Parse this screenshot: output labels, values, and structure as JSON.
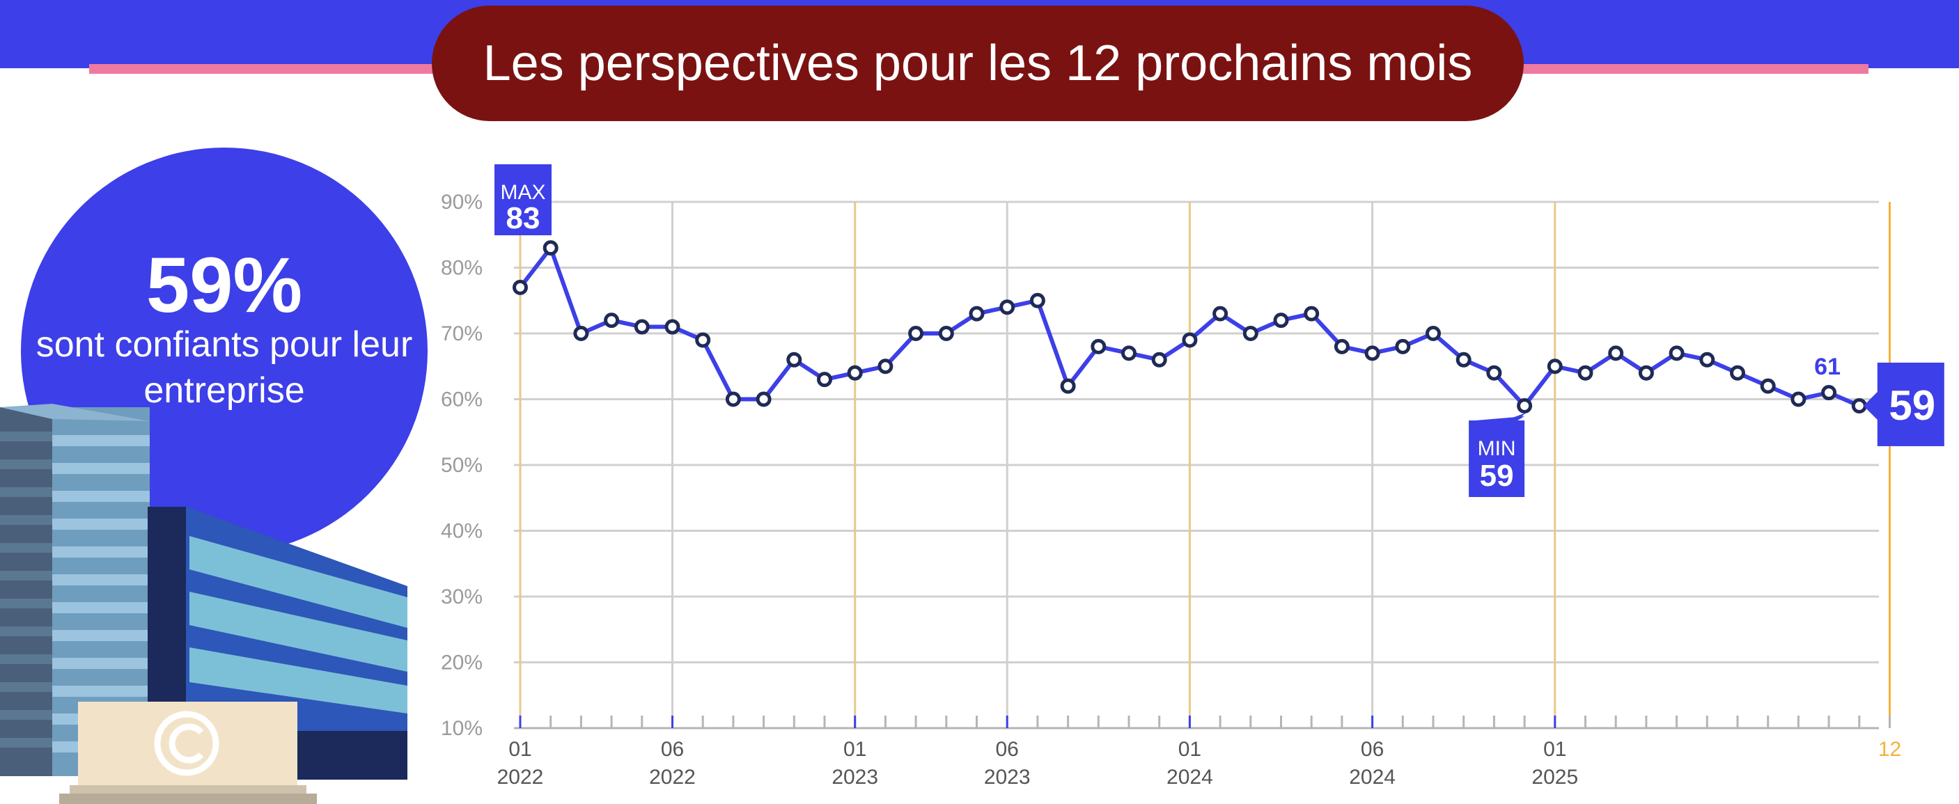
{
  "header": {
    "title": "Les perspectives pour les 12 prochains mois"
  },
  "summary": {
    "value": "59%",
    "text": "sont confiants pour leur entreprise"
  },
  "chart_data": {
    "type": "line",
    "title": "",
    "xlabel": "",
    "ylabel": "",
    "ylim": [
      10,
      90
    ],
    "yticks": [
      "10%",
      "20%",
      "30%",
      "40%",
      "50%",
      "60%",
      "70%",
      "80%",
      "90%"
    ],
    "x_labels": [
      {
        "month": "01",
        "year": "2022",
        "index": 0
      },
      {
        "month": "06",
        "year": "2022",
        "index": 5
      },
      {
        "month": "01",
        "year": "2023",
        "index": 11
      },
      {
        "month": "06",
        "year": "2023",
        "index": 16
      },
      {
        "month": "01",
        "year": "2024",
        "index": 22
      },
      {
        "month": "06",
        "year": "2024",
        "index": 28
      },
      {
        "month": "01",
        "year": "2025",
        "index": 34
      },
      {
        "month": "12",
        "year": "",
        "index": 45
      }
    ],
    "series": [
      {
        "values": [
          77,
          83,
          70,
          72,
          71,
          71,
          69,
          60,
          60,
          66,
          63,
          64,
          65,
          70,
          70,
          73,
          74,
          75,
          62,
          68,
          67,
          66,
          69,
          73,
          70,
          72,
          73,
          68,
          67,
          68,
          70,
          66,
          64,
          59,
          65,
          64,
          67,
          64,
          67,
          66,
          64,
          62,
          60,
          61,
          59
        ]
      }
    ],
    "annotations": {
      "max": {
        "label": "MAX",
        "value": "83",
        "index": 1
      },
      "min": {
        "label": "MIN",
        "value": "59",
        "index": 33
      },
      "previous": {
        "value": "61",
        "index": 43
      },
      "last": {
        "value": "59",
        "index": 44
      }
    },
    "colors": {
      "line": "#3d3fe8",
      "marker_edge": "#1f2b55",
      "grid": "#d0d0d0",
      "year_line": "#e8c98a",
      "current_line": "#f4b23c",
      "axis_text": "#9a9a9a"
    }
  }
}
